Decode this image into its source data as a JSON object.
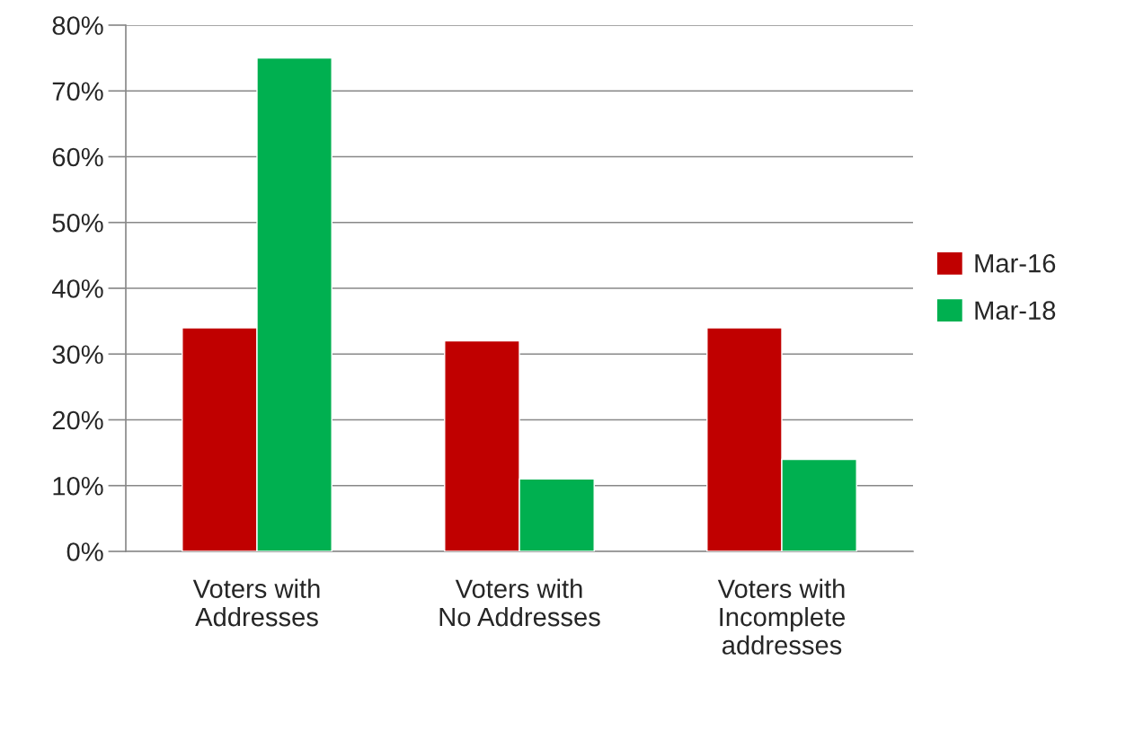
{
  "chart_data": {
    "type": "bar",
    "categories": [
      "Voters with\nAddresses",
      "Voters with\nNo Addresses",
      "Voters with\nIncomplete\naddresses"
    ],
    "series": [
      {
        "name": "Mar-16",
        "color": "#c00000",
        "values": [
          34,
          32,
          34
        ]
      },
      {
        "name": "Mar-18",
        "color": "#00b050",
        "values": [
          75,
          11,
          14
        ]
      }
    ],
    "ylim": [
      0,
      80
    ],
    "yticks": [
      {
        "value": 0,
        "label": "0%"
      },
      {
        "value": 10,
        "label": "10%"
      },
      {
        "value": 20,
        "label": "20%"
      },
      {
        "value": 30,
        "label": "30%"
      },
      {
        "value": 40,
        "label": "40%"
      },
      {
        "value": 50,
        "label": "50%"
      },
      {
        "value": 60,
        "label": "60%"
      },
      {
        "value": 70,
        "label": "70%"
      },
      {
        "value": 80,
        "label": "80%"
      }
    ],
    "grid": "y",
    "legend": "right"
  }
}
